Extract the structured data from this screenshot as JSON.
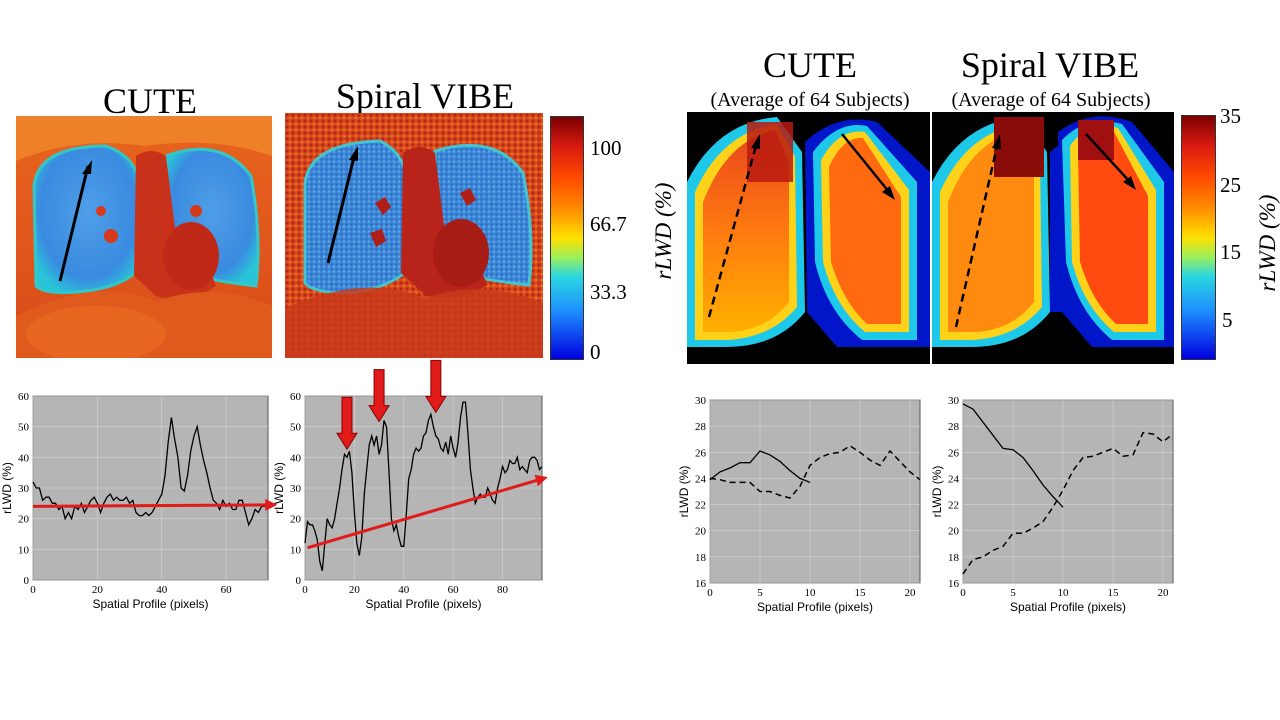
{
  "titles": {
    "cute": "CUTE",
    "spiral_vibe": "Spiral VIBE",
    "cute_avg": "CUTE",
    "spiral_vibe_avg": "Spiral VIBE",
    "cute_avg_sub": "(Average of 64 Subjects)",
    "spiral_vibe_avg_sub": "(Average of 64 Subjects)"
  },
  "colorbars": {
    "left": {
      "label": "rLWD (%)",
      "ticks": [
        "100",
        "66.7",
        "33.3",
        "0"
      ]
    },
    "right": {
      "label": "rLWD (%)",
      "ticks": [
        "35",
        "25",
        "15",
        "5"
      ]
    }
  },
  "chart_data": [
    {
      "id": "cute-profile",
      "type": "line",
      "title": "",
      "xlabel": "Spatial Profile (pixels)",
      "ylabel": "rLWD (%)",
      "xlim": [
        0,
        73
      ],
      "ylim": [
        0,
        60
      ],
      "xticks": [
        0,
        20,
        40,
        60
      ],
      "yticks": [
        0,
        10,
        20,
        30,
        40,
        50,
        60
      ],
      "grid": true,
      "series": [
        {
          "name": "profile",
          "style": "solid",
          "x": [
            0,
            1,
            2,
            3,
            4,
            5,
            6,
            7,
            8,
            9,
            10,
            11,
            12,
            13,
            14,
            15,
            16,
            17,
            18,
            19,
            20,
            21,
            22,
            23,
            24,
            25,
            26,
            27,
            28,
            29,
            30,
            31,
            32,
            33,
            34,
            35,
            36,
            37,
            38,
            39,
            40,
            41,
            42,
            43,
            44,
            45,
            46,
            47,
            48,
            49,
            50,
            51,
            52,
            53,
            54,
            55,
            56,
            57,
            58,
            59,
            60,
            61,
            62,
            63,
            64,
            65,
            66,
            67,
            68,
            69,
            70,
            71,
            72,
            73
          ],
          "y": [
            32,
            30,
            30,
            26,
            27,
            27,
            25,
            25,
            23,
            24,
            20,
            22,
            20,
            24,
            23,
            25,
            22,
            24,
            26,
            27,
            25,
            22,
            25,
            27,
            28,
            26,
            27,
            26,
            26,
            27,
            25,
            26,
            22,
            21,
            21,
            22,
            21,
            22,
            24,
            26,
            28,
            34,
            45,
            53,
            46,
            40,
            30,
            29,
            34,
            42,
            47,
            50,
            44,
            39,
            35,
            30,
            26,
            25,
            23,
            26,
            24,
            25,
            23,
            23,
            26,
            26,
            22,
            18,
            20,
            23,
            22,
            24,
            24,
            25
          ]
        }
      ],
      "annotations": [
        {
          "type": "trend-arrow",
          "color": "#e11a1a",
          "from": [
            0,
            24
          ],
          "to": [
            74,
            24.5
          ]
        }
      ]
    },
    {
      "id": "spiral-vibe-profile",
      "type": "line",
      "title": "",
      "xlabel": "Spatial Profile (pixels)",
      "ylabel": "rLWD (%)",
      "xlim": [
        0,
        96
      ],
      "ylim": [
        0,
        60
      ],
      "xticks": [
        0,
        20,
        40,
        60,
        80
      ],
      "yticks": [
        0,
        10,
        20,
        30,
        40,
        50,
        60
      ],
      "grid": true,
      "series": [
        {
          "name": "profile",
          "style": "solid",
          "x": [
            0,
            1,
            2,
            3,
            4,
            5,
            6,
            7,
            8,
            9,
            10,
            11,
            12,
            13,
            14,
            15,
            16,
            17,
            18,
            19,
            20,
            21,
            22,
            23,
            24,
            25,
            26,
            27,
            28,
            29,
            30,
            31,
            32,
            33,
            34,
            35,
            36,
            37,
            38,
            39,
            40,
            41,
            42,
            43,
            44,
            45,
            46,
            47,
            48,
            49,
            50,
            51,
            52,
            53,
            54,
            55,
            56,
            57,
            58,
            59,
            60,
            61,
            62,
            63,
            64,
            65,
            66,
            67,
            68,
            69,
            70,
            71,
            72,
            73,
            74,
            75,
            76,
            77,
            78,
            79,
            80,
            81,
            82,
            83,
            84,
            85,
            86,
            87,
            88,
            89,
            90,
            91,
            92,
            93,
            94,
            95,
            96
          ],
          "y": [
            12,
            19,
            18,
            18,
            16,
            13,
            6,
            3,
            12,
            20,
            18,
            17,
            20,
            25,
            30,
            36,
            41,
            40,
            42,
            35,
            22,
            12,
            8,
            14,
            28,
            36,
            44,
            47,
            44,
            47,
            41,
            44,
            52,
            50,
            36,
            20,
            16,
            18,
            14,
            11,
            11,
            21,
            33,
            36,
            41,
            43,
            42,
            43,
            47,
            48,
            52,
            54,
            50,
            47,
            46,
            43,
            42,
            45,
            41,
            47,
            43,
            40,
            45,
            53,
            58,
            58,
            48,
            36,
            30,
            25,
            27,
            28,
            27,
            27,
            30,
            28,
            26,
            25,
            30,
            33,
            37,
            35,
            36,
            39,
            38,
            38,
            40,
            36,
            37,
            36,
            35,
            39,
            40,
            40,
            39,
            36,
            37
          ]
        }
      ],
      "annotations": [
        {
          "type": "trend-arrow",
          "color": "#e11a1a",
          "from": [
            1,
            10.5
          ],
          "to": [
            96,
            33
          ]
        },
        {
          "type": "down-arrow",
          "color": "#e11a1a",
          "x": 17,
          "y": 42
        },
        {
          "type": "down-arrow",
          "color": "#e11a1a",
          "x": 30,
          "y": 51
        },
        {
          "type": "down-arrow",
          "color": "#e11a1a",
          "x": 53,
          "y": 54
        }
      ]
    },
    {
      "id": "cute-avg-profile",
      "type": "line",
      "title": "",
      "xlabel": "Spatial Profile (pixels)",
      "ylabel": "rLWD (%)",
      "xlim": [
        0,
        21
      ],
      "ylim": [
        16,
        30
      ],
      "xticks": [
        0,
        5,
        10,
        15,
        20
      ],
      "yticks": [
        16,
        18,
        20,
        22,
        24,
        26,
        28,
        30
      ],
      "grid": true,
      "series": [
        {
          "name": "solid",
          "style": "solid",
          "x": [
            0,
            1,
            2,
            3,
            4,
            5,
            6,
            7,
            8,
            9,
            10
          ],
          "y": [
            23.9,
            24.5,
            24.8,
            25.2,
            25.2,
            26.1,
            25.8,
            25.3,
            24.6,
            24.0,
            23.7
          ]
        },
        {
          "name": "dashed",
          "style": "dashed",
          "x": [
            0,
            1,
            2,
            3,
            4,
            5,
            6,
            7,
            8,
            9,
            10,
            11,
            12,
            13,
            14,
            15,
            16,
            17,
            18,
            19,
            20,
            21
          ],
          "y": [
            24.0,
            23.9,
            23.7,
            23.7,
            23.7,
            23.0,
            23.0,
            22.7,
            22.5,
            23.4,
            25.0,
            25.6,
            25.9,
            26.0,
            26.5,
            26.0,
            25.4,
            25.0,
            26.1,
            25.3,
            24.5,
            23.9
          ]
        }
      ]
    },
    {
      "id": "spiral-vibe-avg-profile",
      "type": "line",
      "title": "",
      "xlabel": "Spatial Profile (pixels)",
      "ylabel": "rLWD (%)",
      "xlim": [
        0,
        21
      ],
      "ylim": [
        16,
        30
      ],
      "xticks": [
        0,
        5,
        10,
        15,
        20
      ],
      "yticks": [
        16,
        18,
        20,
        22,
        24,
        26,
        28,
        30
      ],
      "grid": true,
      "series": [
        {
          "name": "solid",
          "style": "solid",
          "x": [
            0,
            1,
            2,
            3,
            4,
            5,
            6,
            7,
            8,
            9,
            10
          ],
          "y": [
            29.7,
            29.3,
            28.3,
            27.3,
            26.3,
            26.2,
            25.6,
            24.6,
            23.5,
            22.6,
            21.8
          ]
        },
        {
          "name": "dashed",
          "style": "dashed",
          "x": [
            0,
            1,
            2,
            3,
            4,
            5,
            6,
            7,
            8,
            9,
            10,
            11,
            12,
            13,
            14,
            15,
            16,
            17,
            18,
            19,
            20,
            21
          ],
          "y": [
            16.7,
            17.8,
            18.0,
            18.5,
            18.8,
            19.8,
            19.8,
            20.2,
            20.7,
            21.8,
            23.1,
            24.6,
            25.6,
            25.7,
            26.0,
            26.3,
            25.7,
            25.8,
            27.5,
            27.4,
            26.8,
            27.4
          ]
        }
      ]
    }
  ]
}
